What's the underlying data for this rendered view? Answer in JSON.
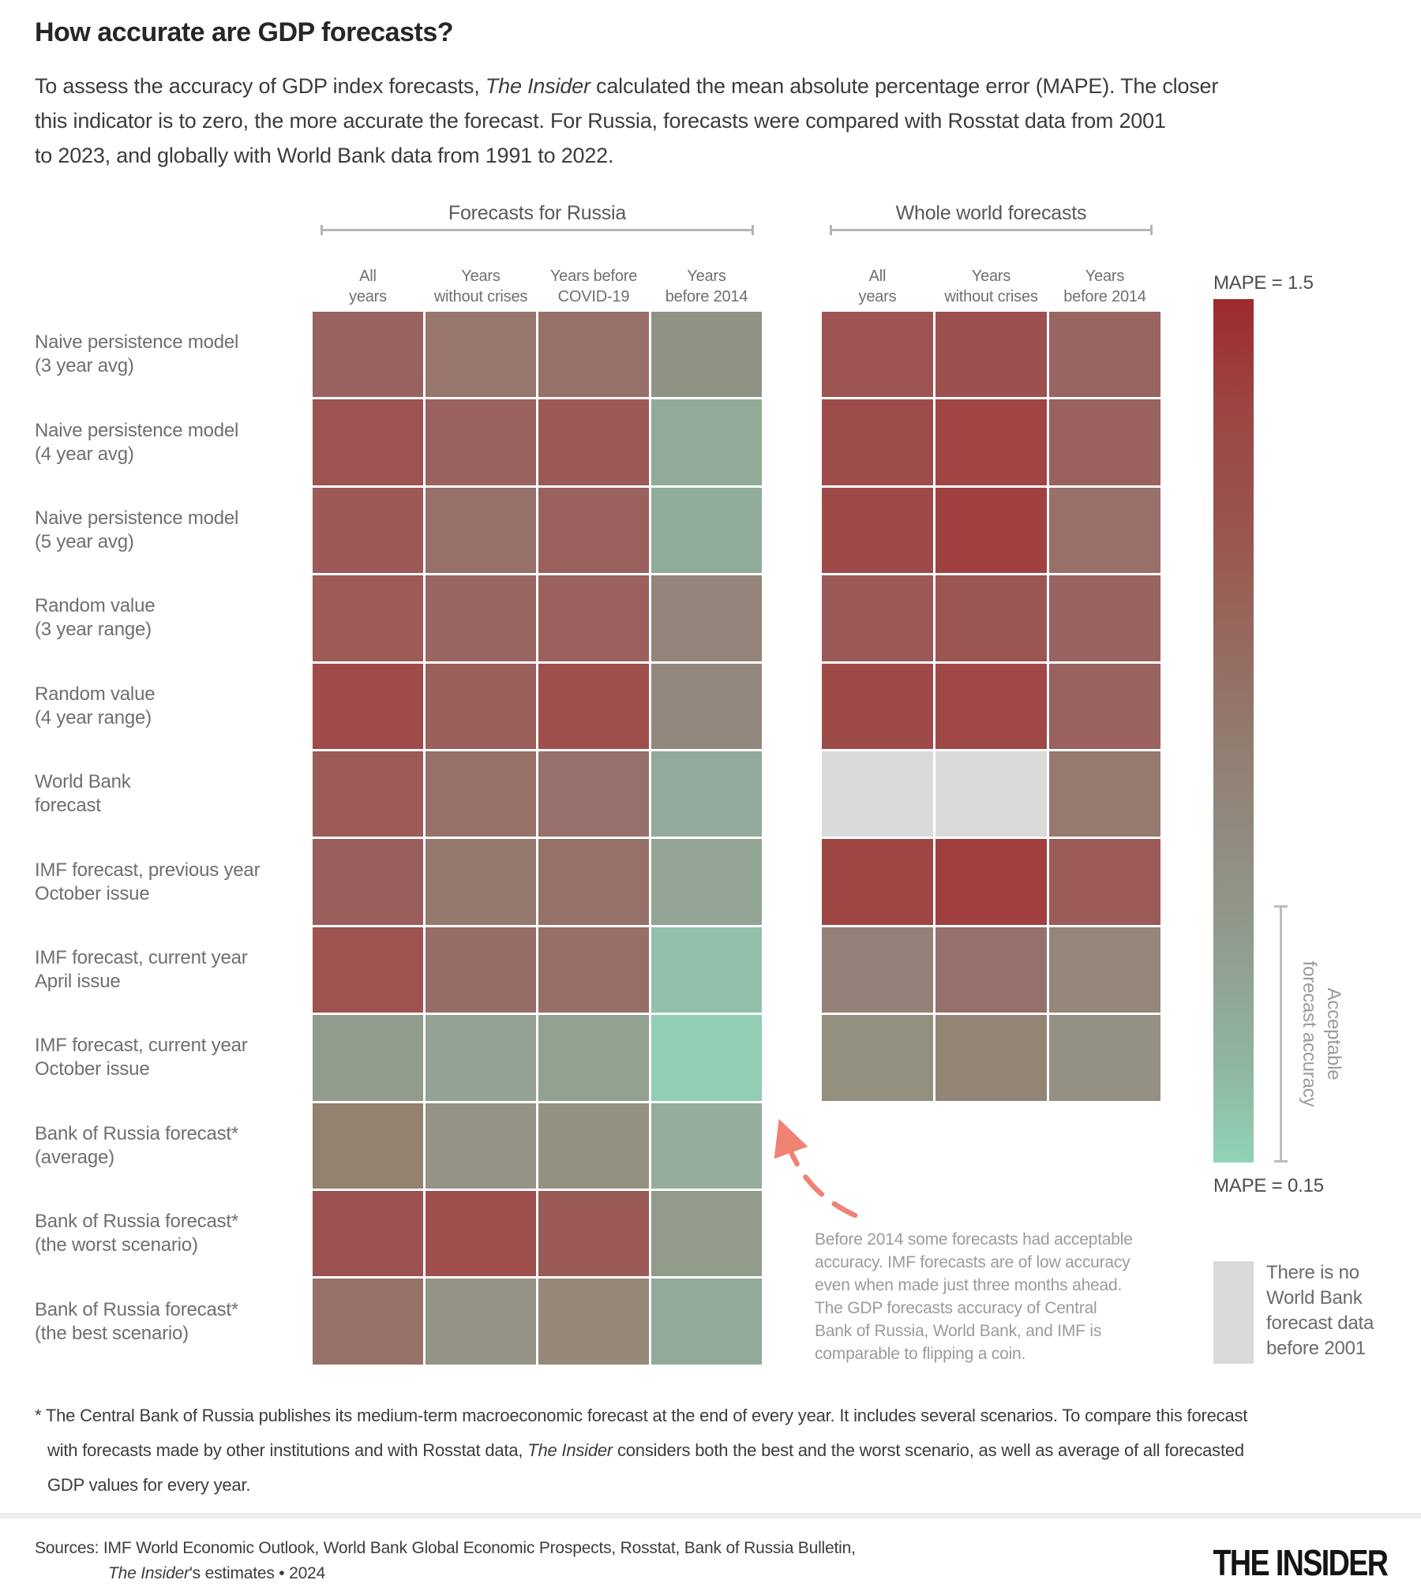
{
  "title": "How accurate are GDP forecasts?",
  "subtitle": {
    "lines": [
      [
        {
          "t": "To assess the accuracy of GDP index forecasts, "
        },
        {
          "t": "The Insider",
          "i": true
        },
        {
          "t": " calculated the mean absolute percentage error (MAPE). The closer"
        }
      ],
      [
        {
          "t": "this indicator is to zero, the more accurate the forecast. For Russia, forecasts were compared with Rosstat data from 2001"
        }
      ],
      [
        {
          "t": "to 2023, and globally with World Bank data from 1991 to 2022."
        }
      ]
    ]
  },
  "chart_data": {
    "type": "heatmap",
    "value_scale": "MAPE from 0.15 (teal, accurate) to 1.5 (dark red, inaccurate); colors encode values",
    "row_labels": [
      [
        "Naive persistence model",
        "(3 year avg)"
      ],
      [
        "Naive persistence model",
        "(4 year avg)"
      ],
      [
        "Naive persistence model",
        "(5 year avg)"
      ],
      [
        "Random value",
        "(3 year range)"
      ],
      [
        "Random value",
        "(4 year range)"
      ],
      [
        "World Bank",
        "forecast"
      ],
      [
        "IMF forecast, previous year",
        "October issue"
      ],
      [
        "IMF forecast, current year",
        "April issue"
      ],
      [
        "IMF forecast, current year",
        "October issue"
      ],
      [
        "Bank of Russia forecast*",
        "(average)"
      ],
      [
        "Bank of Russia forecast*",
        "(the worst scenario)"
      ],
      [
        "Bank of Russia forecast*",
        "(the best scenario)"
      ]
    ],
    "groups": [
      {
        "name": "Forecasts for Russia",
        "columns": [
          [
            "All",
            "years"
          ],
          [
            "Years",
            "without crises"
          ],
          [
            "Years before",
            "COVID-19"
          ],
          [
            "Years",
            "before 2014"
          ]
        ],
        "cell_colors": [
          [
            "#986260",
            "#97776e",
            "#977069",
            "#8f9383"
          ],
          [
            "#9d5351",
            "#9a625f",
            "#9c5956",
            "#91ab98"
          ],
          [
            "#9c5957",
            "#97706a",
            "#9b615e",
            "#90ac9a"
          ],
          [
            "#9d5a56",
            "#996661",
            "#9a615e",
            "#93857a"
          ],
          [
            "#a04a49",
            "#9b5f5b",
            "#a04e4c",
            "#92877c"
          ],
          [
            "#9c5b58",
            "#977069",
            "#97706b",
            "#92aa9b"
          ],
          [
            "#9a5f5c",
            "#95786e",
            "#967169",
            "#92a595"
          ],
          [
            "#9e5351",
            "#966d66",
            "#976e68",
            "#93c0ab"
          ],
          [
            "#929c8c",
            "#93a294",
            "#93a191",
            "#91ceb3"
          ],
          [
            "#94806f",
            "#949384",
            "#949181",
            "#94ac9b"
          ],
          [
            "#9c5250",
            "#9e4f4d",
            "#9a5a56",
            "#929a8a"
          ],
          [
            "#957167",
            "#949384",
            "#948877",
            "#92aa9a"
          ]
        ]
      },
      {
        "name": "Whole world forecasts",
        "columns": [
          [
            "All",
            "years"
          ],
          [
            "Years",
            "without crises"
          ],
          [
            "Years",
            "before 2014"
          ]
        ],
        "cell_colors": [
          [
            "#9d5452",
            "#9c504f",
            "#996561"
          ],
          [
            "#9e4c4b",
            "#a04544",
            "#9a615e"
          ],
          [
            "#9e4a49",
            "#a04040",
            "#987069"
          ],
          [
            "#9b5856",
            "#9b5553",
            "#996360"
          ],
          [
            "#9e4a49",
            "#9f4847",
            "#99625f"
          ],
          [
            "#d9dada",
            "#d9dada",
            "#96796f"
          ],
          [
            "#9d4644",
            "#a03f3e",
            "#9b5b58"
          ],
          [
            "#958078",
            "#96706a",
            "#948678"
          ],
          [
            "#93907f",
            "#948677",
            "#949083"
          ]
        ]
      }
    ]
  },
  "legend": {
    "max_label": "MAPE = 1.5",
    "min_label": "MAPE = 0.15",
    "gradient_stops": [
      "#9e2a2c 0%",
      "#9b4543 12%",
      "#9a574f 28%",
      "#927d71 52%",
      "#90988a 72%",
      "#90b4a0 88%",
      "#90d3b7 100%"
    ],
    "acceptable_lines": [
      "Acceptable",
      "forecast accuracy"
    ],
    "no_data_color": "#d9dada",
    "no_data_lines": [
      "There is no",
      "World Bank",
      "forecast data",
      "before 2001"
    ]
  },
  "annotation": {
    "arrow_color": "#f08274",
    "lines": [
      "Before 2014 some forecasts had acceptable",
      "accuracy. IMF forecasts are of low accuracy",
      "even when made just three months ahead.",
      "The GDP forecasts accuracy of Central",
      "Bank of Russia, World Bank, and IMF is",
      "comparable to flipping a coin."
    ]
  },
  "footnote": {
    "lines": [
      [
        {
          "t": "* The Central Bank of Russia publishes its medium-term macroeconomic forecast at the end of every year. It includes several scenarios. To compare this forecast"
        }
      ],
      [
        {
          "t": "with forecasts made by other institutions and with Rosstat data, "
        },
        {
          "t": "The Insider",
          "i": true
        },
        {
          "t": " considers both the best and the worst scenario, as well as average of all forecasted"
        }
      ],
      [
        {
          "t": "GDP values for every year."
        }
      ]
    ]
  },
  "footer": {
    "divider_color": "#ededed",
    "sources_lines": [
      [
        {
          "t": "Sources: IMF World Economic Outlook, World Bank Global Economic Prospects, Rosstat, Bank of Russia Bulletin,"
        }
      ],
      [
        {
          "t": "The Insider",
          "i": true
        },
        {
          "t": "'s estimates • 2024"
        }
      ]
    ],
    "logo": "THE INSIDER"
  }
}
